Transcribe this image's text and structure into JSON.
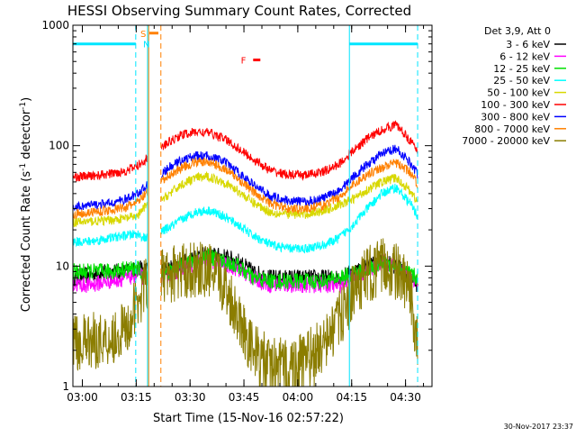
{
  "chart_data": {
    "type": "line",
    "title": "HESSI Observing Summary Count Rates, Corrected",
    "xlabel": "Start Time (15-Nov-16 02:57:22)",
    "ylabel": "Corrected Count Rate (s",
    "ylabel_sup1": "-1",
    "ylabel_mid": " detector",
    "ylabel_sup2": "-1",
    "ylabel_end": ")",
    "footer": "30-Nov-2017 23:37",
    "x_axis": {
      "unit": "minutes since 02:57:22",
      "range": [
        0,
        100
      ]
    },
    "y_axis": {
      "scale": "log",
      "range": [
        1,
        1000
      ]
    },
    "x_ticks": [
      {
        "label": "03:00",
        "value": 2.63
      },
      {
        "label": "03:15",
        "value": 17.63
      },
      {
        "label": "03:30",
        "value": 32.63
      },
      {
        "label": "03:45",
        "value": 47.63
      },
      {
        "label": "04:00",
        "value": 62.63
      },
      {
        "label": "04:15",
        "value": 77.63
      },
      {
        "label": "04:30",
        "value": 92.63
      }
    ],
    "y_ticks": [
      {
        "label": "1",
        "value": 1
      },
      {
        "label": "10",
        "value": 10
      },
      {
        "label": "100",
        "value": 100
      },
      {
        "label": "1000",
        "value": 1000
      }
    ],
    "legend": {
      "title": "Det 3,9, Att 0",
      "placement": "right"
    },
    "series": [
      {
        "name": "3 - 6 keV",
        "color": "#000000",
        "x": [
          0,
          5,
          10,
          15,
          18,
          20,
          24,
          27,
          30,
          34,
          38,
          42,
          46,
          50,
          55,
          60,
          65,
          70,
          74,
          78,
          82,
          86,
          90,
          94,
          96
        ],
        "y": [
          8,
          8.5,
          9,
          9,
          9.5,
          9.5,
          9,
          9.5,
          10.5,
          12,
          12.5,
          12,
          11,
          9,
          8,
          8,
          8,
          8,
          8,
          9,
          10,
          11,
          10,
          8,
          7
        ]
      },
      {
        "name": "6 - 12 keV",
        "color": "#ff00ff",
        "x": [
          0,
          5,
          10,
          15,
          18,
          20,
          24,
          27,
          30,
          34,
          38,
          42,
          46,
          50,
          55,
          60,
          65,
          70,
          74,
          78,
          82,
          86,
          90,
          94,
          96
        ],
        "y": [
          7,
          7,
          7.5,
          8,
          8.5,
          8,
          8,
          8.5,
          9.5,
          10.5,
          11,
          10.5,
          9.5,
          8,
          7,
          7,
          7,
          7,
          7,
          8,
          9,
          11,
          10,
          8,
          7
        ]
      },
      {
        "name": "12 - 25 keV",
        "color": "#00e000",
        "x": [
          0,
          5,
          10,
          15,
          18,
          20,
          24,
          27,
          30,
          34,
          38,
          42,
          46,
          50,
          55,
          60,
          65,
          70,
          74,
          78,
          82,
          86,
          90,
          94,
          96
        ],
        "y": [
          9,
          9,
          9,
          9.5,
          9.5,
          8,
          8.5,
          9,
          10,
          11.5,
          12,
          11,
          10,
          8,
          7.5,
          7.5,
          7.5,
          7.5,
          8,
          8.5,
          9.5,
          10.5,
          10,
          8.5,
          8
        ]
      },
      {
        "name": "25 - 50 keV",
        "color": "#00ffff",
        "x": [
          0,
          5,
          10,
          15,
          18,
          20,
          24,
          27,
          30,
          34,
          38,
          42,
          46,
          50,
          55,
          60,
          65,
          70,
          74,
          78,
          82,
          86,
          90,
          94,
          96
        ],
        "y": [
          16,
          16,
          17,
          18,
          18.5,
          17,
          19,
          21,
          24,
          28,
          29,
          26,
          22,
          18,
          15,
          14,
          14,
          15,
          17,
          22,
          30,
          40,
          45,
          33,
          26
        ]
      },
      {
        "name": "50 - 100 keV",
        "color": "#d8d800",
        "x": [
          0,
          5,
          10,
          15,
          18,
          20,
          24,
          27,
          30,
          34,
          38,
          42,
          46,
          50,
          55,
          60,
          65,
          70,
          74,
          78,
          82,
          86,
          90,
          94,
          96
        ],
        "y": [
          23,
          23.5,
          24,
          25,
          26,
          31,
          34,
          40,
          47,
          54,
          55,
          50,
          42,
          34,
          28,
          27,
          27,
          29,
          32,
          36,
          43,
          50,
          54,
          42,
          34
        ]
      },
      {
        "name": "100 - 300 keV",
        "color": "#ff0000",
        "x": [
          0,
          5,
          10,
          15,
          18,
          20,
          24,
          27,
          30,
          34,
          38,
          42,
          46,
          50,
          55,
          60,
          65,
          70,
          74,
          78,
          82,
          86,
          90,
          94,
          96
        ],
        "y": [
          55,
          56,
          58,
          62,
          68,
          76,
          92,
          108,
          122,
          130,
          128,
          115,
          95,
          78,
          62,
          57,
          57,
          61,
          70,
          90,
          115,
          135,
          150,
          110,
          88
        ]
      },
      {
        "name": "300 - 800 keV",
        "color": "#0000ff",
        "x": [
          0,
          5,
          10,
          15,
          18,
          20,
          24,
          27,
          30,
          34,
          38,
          42,
          46,
          50,
          55,
          60,
          65,
          70,
          74,
          78,
          82,
          86,
          90,
          94,
          96
        ],
        "y": [
          31,
          32,
          33,
          36,
          40,
          45,
          56,
          66,
          75,
          82,
          82,
          74,
          60,
          48,
          38,
          35,
          34,
          37,
          42,
          55,
          70,
          85,
          95,
          72,
          58
        ]
      },
      {
        "name": "800 - 7000 keV",
        "color": "#ff8000",
        "x": [
          0,
          5,
          10,
          15,
          18,
          20,
          24,
          27,
          30,
          34,
          38,
          42,
          46,
          50,
          55,
          60,
          65,
          70,
          74,
          78,
          82,
          86,
          90,
          94,
          96
        ],
        "y": [
          27,
          28,
          29,
          31,
          34,
          39,
          48,
          57,
          65,
          73,
          73,
          65,
          53,
          42,
          33,
          30,
          30,
          32,
          37,
          47,
          58,
          66,
          72,
          60,
          48
        ]
      },
      {
        "name": "7000 - 20000 keV",
        "color": "#8b7d00",
        "x": [
          0,
          5,
          10,
          15,
          18,
          20,
          24,
          27,
          30,
          34,
          38,
          42,
          46,
          50,
          55,
          60,
          65,
          70,
          74,
          78,
          82,
          86,
          90,
          94,
          96
        ],
        "y": [
          2.3,
          2.4,
          2.5,
          3,
          5,
          7,
          8,
          8.5,
          9,
          9.5,
          9,
          7,
          4,
          2,
          1.5,
          1.5,
          1.7,
          2.2,
          3.5,
          6,
          8.5,
          10,
          9,
          6,
          2
        ]
      }
    ],
    "attenuator_level": {
      "color": "#00e5ff",
      "value": 700,
      "segments": [
        [
          0,
          17.5
        ],
        [
          77,
          96
        ]
      ]
    },
    "vertical_lines": [
      {
        "x": 17.5,
        "color": "#00e5ff",
        "style": "dashed"
      },
      {
        "x": 20.8,
        "color": "#00e5ff",
        "style": "solid"
      },
      {
        "x": 77,
        "color": "#00e5ff",
        "style": "solid"
      },
      {
        "x": 96,
        "color": "#00e5ff",
        "style": "dashed"
      },
      {
        "x": 21.1,
        "color": "#ff8000",
        "style": "solid"
      },
      {
        "x": 24.5,
        "color": "#ff8000",
        "style": "dashed"
      }
    ],
    "flags": [
      {
        "label": "S",
        "color": "#ff8000",
        "x": 19.6,
        "y": 860
      },
      {
        "label": "N",
        "color": "#00e5ff",
        "x": 20.5,
        "y": 700
      },
      {
        "label": "F",
        "color": "#ff0000",
        "x": 47.5,
        "y": 515
      }
    ],
    "flag_bars": [
      {
        "color": "#ff8000",
        "x": [
          21.3,
          23.8
        ],
        "y": 860
      },
      {
        "color": "#ff0000",
        "x": [
          50.2,
          52.2
        ],
        "y": 515
      }
    ]
  }
}
